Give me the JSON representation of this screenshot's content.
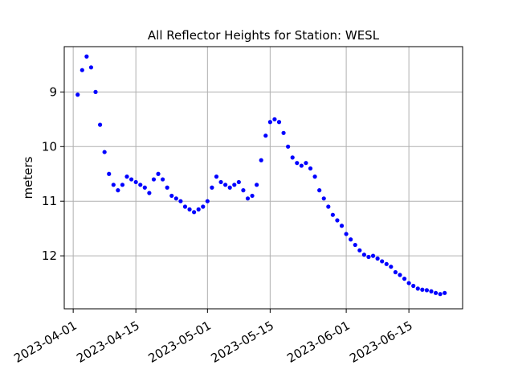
{
  "chart_data": {
    "type": "scatter",
    "title": "All Reflector Heights for Station: WESL",
    "xlabel": "",
    "ylabel": "meters",
    "y_inverted": true,
    "grid": true,
    "legend": "none",
    "xlim": [
      "2023-03-30",
      "2023-06-27"
    ],
    "ylim": [
      12.97,
      8.17
    ],
    "x_ticks": [
      "2023-04-01",
      "2023-04-15",
      "2023-05-01",
      "2023-05-15",
      "2023-06-01",
      "2023-06-15"
    ],
    "y_ticks": [
      9,
      10,
      11,
      12
    ],
    "series": [
      {
        "color": "#0000ff",
        "marker": "circle",
        "x": [
          "2023-04-02",
          "2023-04-03",
          "2023-04-04",
          "2023-04-05",
          "2023-04-06",
          "2023-04-07",
          "2023-04-08",
          "2023-04-09",
          "2023-04-10",
          "2023-04-11",
          "2023-04-12",
          "2023-04-13",
          "2023-04-14",
          "2023-04-15",
          "2023-04-16",
          "2023-04-17",
          "2023-04-18",
          "2023-04-19",
          "2023-04-20",
          "2023-04-21",
          "2023-04-22",
          "2023-04-23",
          "2023-04-24",
          "2023-04-25",
          "2023-04-26",
          "2023-04-27",
          "2023-04-28",
          "2023-04-29",
          "2023-04-30",
          "2023-05-01",
          "2023-05-02",
          "2023-05-03",
          "2023-05-04",
          "2023-05-05",
          "2023-05-06",
          "2023-05-07",
          "2023-05-08",
          "2023-05-09",
          "2023-05-10",
          "2023-05-11",
          "2023-05-12",
          "2023-05-13",
          "2023-05-14",
          "2023-05-15",
          "2023-05-16",
          "2023-05-17",
          "2023-05-18",
          "2023-05-19",
          "2023-05-20",
          "2023-05-21",
          "2023-05-22",
          "2023-05-23",
          "2023-05-24",
          "2023-05-25",
          "2023-05-26",
          "2023-05-27",
          "2023-05-28",
          "2023-05-29",
          "2023-05-30",
          "2023-05-31",
          "2023-06-01",
          "2023-06-02",
          "2023-06-03",
          "2023-06-04",
          "2023-06-05",
          "2023-06-06",
          "2023-06-07",
          "2023-06-08",
          "2023-06-09",
          "2023-06-10",
          "2023-06-11",
          "2023-06-12",
          "2023-06-13",
          "2023-06-14",
          "2023-06-15",
          "2023-06-16",
          "2023-06-17",
          "2023-06-18",
          "2023-06-19",
          "2023-06-20",
          "2023-06-21",
          "2023-06-22",
          "2023-06-23"
        ],
        "y": [
          9.05,
          8.6,
          8.35,
          8.55,
          9.0,
          9.6,
          10.1,
          10.5,
          10.7,
          10.8,
          10.7,
          10.55,
          10.6,
          10.65,
          10.7,
          10.75,
          10.85,
          10.6,
          10.5,
          10.6,
          10.75,
          10.9,
          10.95,
          11.0,
          11.1,
          11.15,
          11.2,
          11.15,
          11.1,
          11.0,
          10.75,
          10.55,
          10.65,
          10.7,
          10.75,
          10.7,
          10.65,
          10.8,
          10.95,
          10.9,
          10.7,
          10.25,
          9.8,
          9.55,
          9.5,
          9.55,
          9.75,
          10.0,
          10.2,
          10.3,
          10.35,
          10.3,
          10.4,
          10.55,
          10.8,
          10.95,
          11.1,
          11.25,
          11.35,
          11.45,
          11.6,
          11.7,
          11.8,
          11.9,
          11.98,
          12.02,
          12.0,
          12.05,
          12.1,
          12.15,
          12.2,
          12.3,
          12.35,
          12.42,
          12.5,
          12.55,
          12.6,
          12.62,
          12.63,
          12.65,
          12.68,
          12.7,
          12.68
        ]
      }
    ]
  }
}
